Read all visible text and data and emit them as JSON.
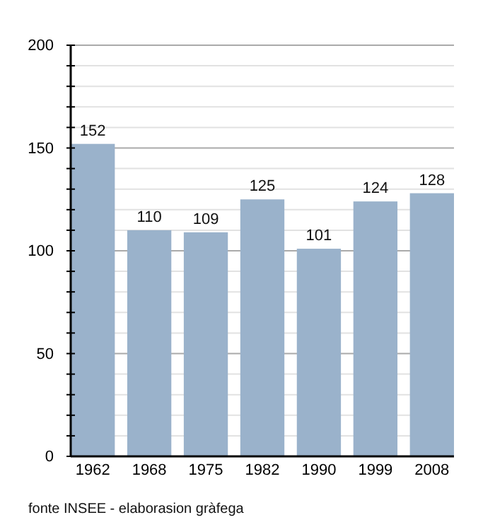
{
  "chart_data": {
    "type": "bar",
    "categories": [
      "1962",
      "1968",
      "1975",
      "1982",
      "1990",
      "1999",
      "2008"
    ],
    "values": [
      152,
      110,
      109,
      125,
      101,
      124,
      128
    ],
    "color": "#9ab2cb",
    "ylim": [
      0,
      200
    ],
    "yticks": [
      0,
      {
        "value": 10,
        "label": null
      },
      {
        "value": 20,
        "label": null
      },
      {
        "value": 30,
        "label": null
      },
      {
        "value": 40,
        "label": null
      },
      50,
      {
        "value": 60,
        "label": null
      },
      {
        "value": 70,
        "label": null
      },
      {
        "value": 80,
        "label": null
      },
      {
        "value": 90,
        "label": null
      },
      100,
      {
        "value": 110,
        "label": null
      },
      {
        "value": 120,
        "label": null
      },
      {
        "value": 130,
        "label": null
      },
      {
        "value": 140,
        "label": null
      },
      150,
      {
        "value": 160,
        "label": null
      },
      {
        "value": 170,
        "label": null
      },
      {
        "value": 180,
        "label": null
      },
      {
        "value": 190,
        "label": null
      },
      200
    ],
    "grid": true,
    "data_labels": true,
    "annotations": [
      "fonte INSEE - elaborasion gràfega"
    ]
  }
}
